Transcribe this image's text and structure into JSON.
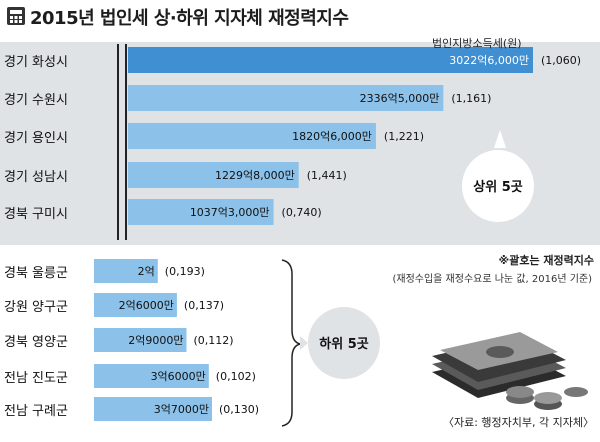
{
  "title": "2015년 법인세 상·하위 지자체 재정력지수",
  "unit_label": "법인지방소득세(원)",
  "note_title": "※괄호는 재정력지수",
  "note_sub": "(재정수입을 재정수요로 나눈 값, 2016년 기준)",
  "source": "〈자료: 행정자치부, 각 지자체〉",
  "top_badge": "상위 5곳",
  "bottom_badge": "하위 5곳",
  "colors": {
    "bar_dark": "#3f8fd2",
    "bar_light": "#8cc2ea",
    "panel": "#dfe3e6",
    "badge": "#ffffff"
  },
  "chart_data": {
    "type": "bar",
    "title": "2015년 법인세 상·하위 지자체 재정력지수",
    "xlabel": "",
    "ylabel": "",
    "groups": [
      {
        "name": "상위 5곳",
        "categories": [
          "경기 화성시",
          "경기 수원시",
          "경기 용인시",
          "경기 성남시",
          "경북 구미시"
        ],
        "values": [
          302260000000,
          233650000000,
          182060000000,
          122980000000,
          103730000000
        ],
        "value_labels": [
          "3022억6,000만",
          "2336억5,000만",
          "1820억6,000만",
          "1229억8,000만",
          "1037억3,000만"
        ],
        "index_labels": [
          "(1,060)",
          "(1,161)",
          "(1,221)",
          "(1,441)",
          "(0,740)"
        ]
      },
      {
        "name": "하위 5곳",
        "categories": [
          "경북 울릉군",
          "강원 양구군",
          "경북 영양군",
          "전남 진도군",
          "전남 구례군"
        ],
        "values": [
          200000000,
          260000000,
          290000000,
          360000000,
          370000000
        ],
        "value_labels": [
          "2억",
          "2억6000만",
          "2억9000만",
          "3억6000만",
          "3억7000만"
        ],
        "index_labels": [
          "(0,193)",
          "(0,137)",
          "(0,112)",
          "(0,102)",
          "(0,130)"
        ]
      }
    ]
  }
}
